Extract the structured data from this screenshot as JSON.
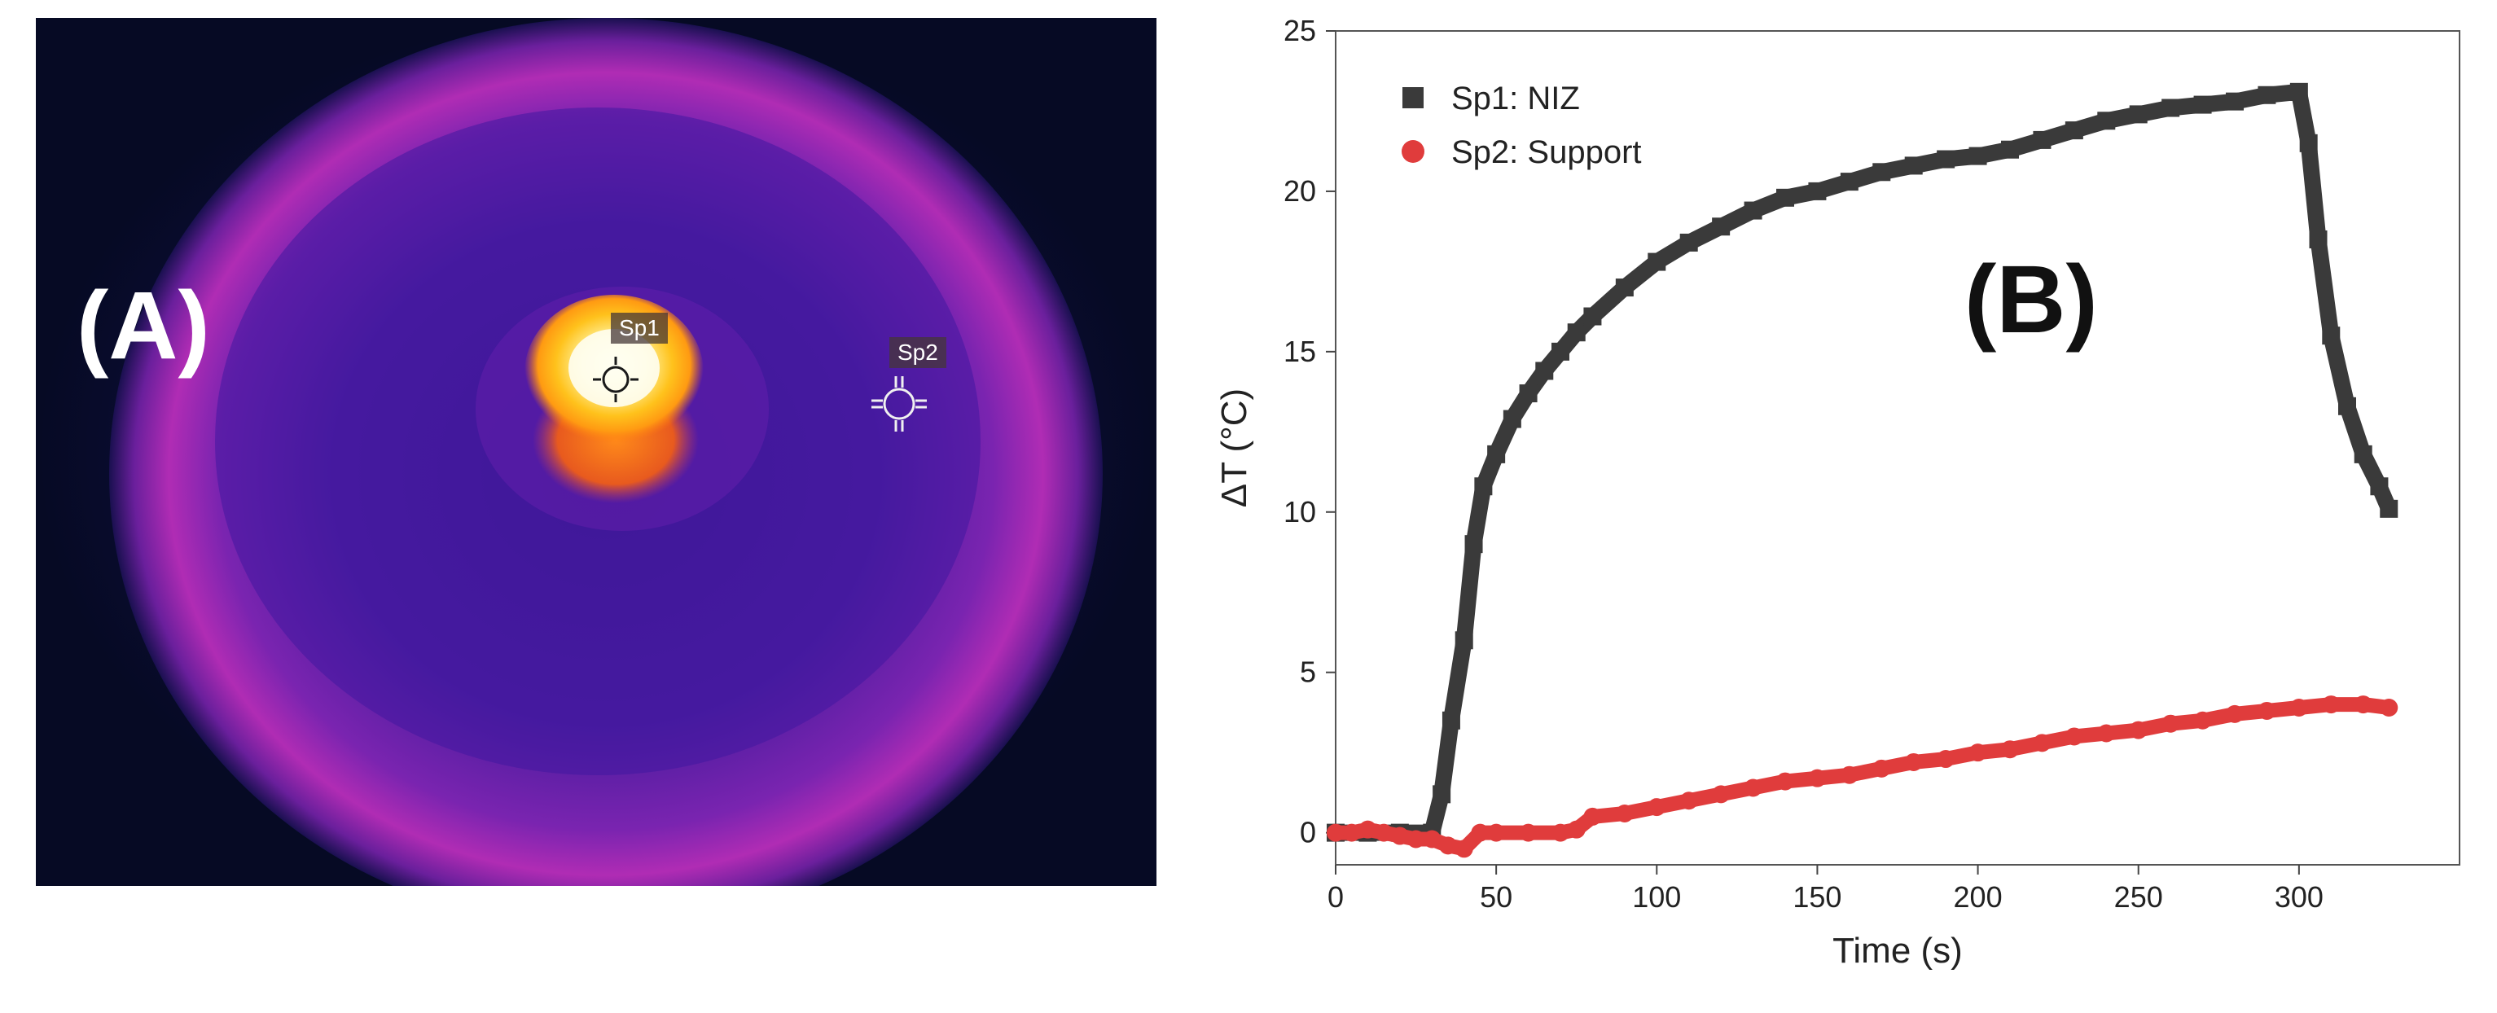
{
  "panel_a": {
    "label": "(A)",
    "spots": [
      {
        "label": "Sp1"
      },
      {
        "label": "Sp2"
      }
    ],
    "colors": {
      "background": "#060a24",
      "disk": "#4a1c9a",
      "ring": "#b02cb4",
      "hot_core": "#fffbe0",
      "hot_glow": "#ffb21a",
      "hot_edge": "#ff7a10"
    }
  },
  "chart_data": {
    "type": "scatter",
    "panel_label": "(B)",
    "xlabel": "Time (s)",
    "ylabel": "ΔT (°C)",
    "xlim": [
      0,
      350
    ],
    "ylim": [
      -1,
      25
    ],
    "xticks": [
      0,
      50,
      100,
      150,
      200,
      250,
      300
    ],
    "yticks": [
      0,
      5,
      10,
      15,
      20,
      25
    ],
    "legend_position": "top-left",
    "series": [
      {
        "name": "Sp1: NIZ",
        "color": "#3a3a3a",
        "marker": "square",
        "x": [
          0,
          10,
          20,
          30,
          33,
          36,
          40,
          43,
          46,
          50,
          55,
          60,
          65,
          70,
          75,
          80,
          90,
          100,
          110,
          120,
          130,
          140,
          150,
          160,
          170,
          180,
          190,
          200,
          210,
          220,
          230,
          240,
          250,
          260,
          270,
          280,
          290,
          300,
          303,
          306,
          310,
          315,
          320,
          325,
          328
        ],
        "y": [
          0,
          0,
          0,
          0,
          1.2,
          3.5,
          6.0,
          9.0,
          10.8,
          11.8,
          12.9,
          13.7,
          14.4,
          15.0,
          15.6,
          16.1,
          17.0,
          17.8,
          18.4,
          18.9,
          19.4,
          19.8,
          20.0,
          20.3,
          20.6,
          20.8,
          21.0,
          21.1,
          21.3,
          21.6,
          21.9,
          22.2,
          22.4,
          22.6,
          22.7,
          22.8,
          23.0,
          23.1,
          21.5,
          18.5,
          15.5,
          13.3,
          11.8,
          10.8,
          10.1
        ]
      },
      {
        "name": "Sp2: Support",
        "color": "#e03c3c",
        "marker": "circle",
        "x": [
          0,
          5,
          10,
          15,
          20,
          25,
          30,
          35,
          40,
          45,
          50,
          60,
          70,
          75,
          80,
          90,
          100,
          110,
          120,
          130,
          140,
          150,
          160,
          170,
          180,
          190,
          200,
          210,
          220,
          230,
          240,
          250,
          260,
          270,
          280,
          290,
          300,
          310,
          320,
          328
        ],
        "y": [
          0,
          0,
          0.1,
          0,
          -0.1,
          -0.2,
          -0.2,
          -0.4,
          -0.5,
          0,
          0,
          0,
          0,
          0.1,
          0.5,
          0.6,
          0.8,
          1.0,
          1.2,
          1.4,
          1.6,
          1.7,
          1.8,
          2.0,
          2.2,
          2.3,
          2.5,
          2.6,
          2.8,
          3.0,
          3.1,
          3.2,
          3.4,
          3.5,
          3.7,
          3.8,
          3.9,
          4.0,
          4.0,
          3.9
        ]
      }
    ]
  }
}
